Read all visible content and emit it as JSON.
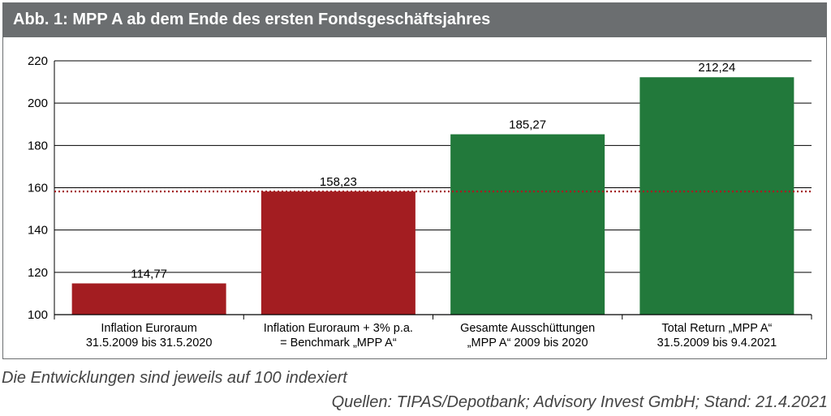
{
  "header": {
    "title": "Abb. 1: MPP A ab dem Ende des ersten Fondsgeschäftsjahres"
  },
  "chart_data": {
    "type": "bar",
    "categories": [
      [
        "Inflation Euroraum",
        "31.5.2009 bis 31.5.2020"
      ],
      [
        "Inflation Euroraum + 3% p.a.",
        "= Benchmark „MPP A“"
      ],
      [
        "Gesamte Ausschüttungen",
        "„MPP A“ 2009 bis 2020"
      ],
      [
        "Total Return „MPP A“",
        "31.5.2009 bis 9.4.2021"
      ]
    ],
    "values": [
      114.77,
      158.23,
      185.27,
      212.24
    ],
    "value_labels": [
      "114,77",
      "158,23",
      "185,27",
      "212,24"
    ],
    "bar_colors": [
      "#a31d21",
      "#a31d21",
      "#22793b",
      "#22793b"
    ],
    "ylim": [
      100,
      220
    ],
    "yticks": [
      100,
      120,
      140,
      160,
      180,
      200,
      220
    ],
    "grid": true,
    "reference_line": {
      "value": 158.23,
      "style": "dotted",
      "color": "#a31d21"
    }
  },
  "footer": {
    "note": "Die Entwicklungen sind jeweils auf 100 indexiert",
    "source": "Quellen: TIPAS/Depotbank; Advisory Invest GmbH; Stand: 21.4.2021"
  }
}
